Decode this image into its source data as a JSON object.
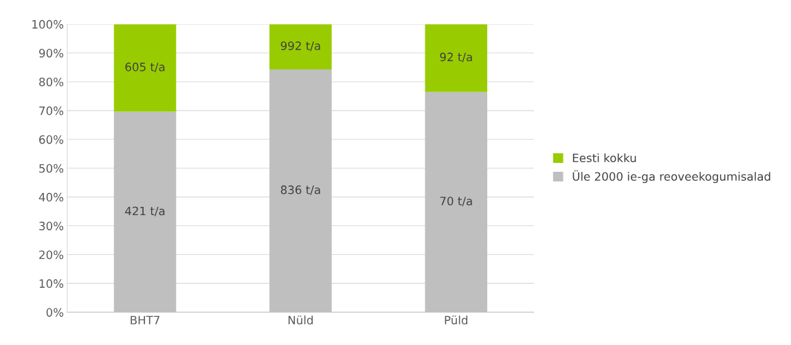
{
  "chart_data": {
    "type": "bar",
    "stacked": true,
    "categories": [
      "BHT7",
      "Nüld",
      "Püld"
    ],
    "series": [
      {
        "name": "Üle 2000 ie-ga reoveekogumisalad",
        "color": "#bfbfbf",
        "values": [
          69.6,
          84.3,
          76.5
        ]
      },
      {
        "name": "Eesti kokku",
        "color": "#99cc00",
        "values": [
          30.4,
          15.7,
          23.5
        ]
      }
    ],
    "annotations": [
      "421 t/a",
      "836 t/a",
      "70 t/a",
      "605 t/a",
      "992 t/a",
      "92 t/a"
    ],
    "ylim": [
      0,
      100
    ],
    "yticks": [
      {
        "value": 0,
        "label": "0%"
      },
      {
        "value": 10,
        "label": "10%"
      },
      {
        "value": 20,
        "label": "20%"
      },
      {
        "value": 30,
        "label": "30%"
      },
      {
        "value": 40,
        "label": "40%"
      },
      {
        "value": 50,
        "label": "50%"
      },
      {
        "value": 60,
        "label": "60%"
      },
      {
        "value": 70,
        "label": "70%"
      },
      {
        "value": 80,
        "label": "80%"
      },
      {
        "value": 90,
        "label": "90%"
      },
      {
        "value": 100,
        "label": "100%"
      }
    ],
    "grid": "y",
    "legend": "right"
  }
}
